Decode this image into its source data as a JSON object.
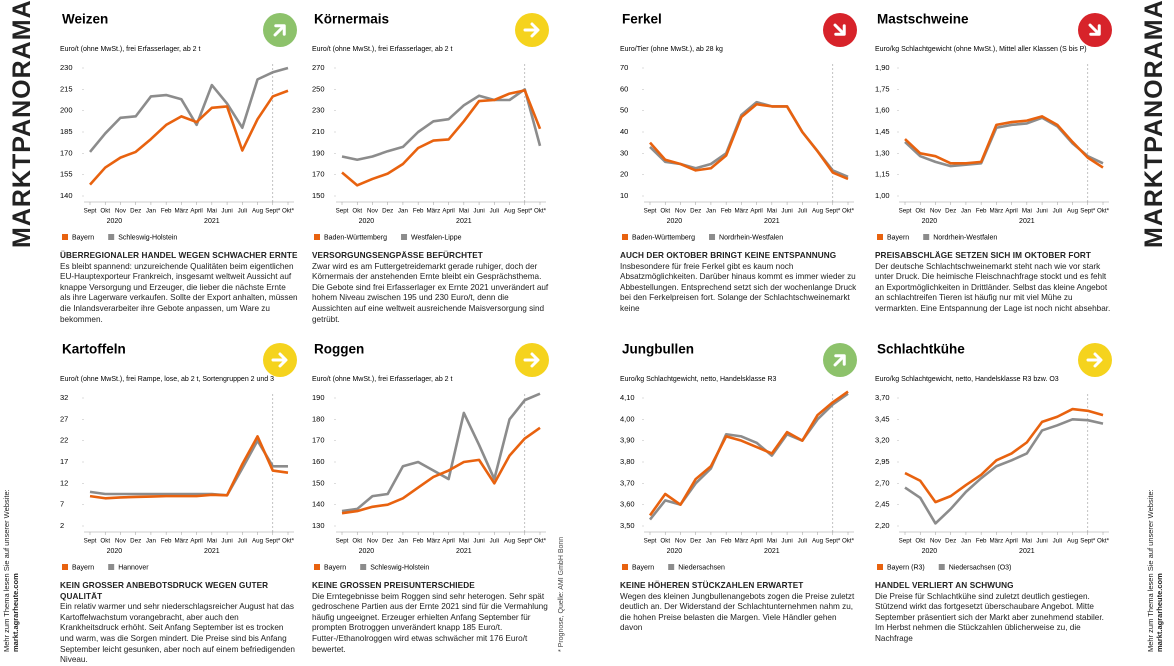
{
  "sidebar_title": "MARKTPANORAMA",
  "website_note": "Mehr zum Thema lesen Sie auf unserer Website:",
  "website": "markt.agrarheute.com",
  "footnote": "* Prognose, Quelle: AMI GmbH Bonn",
  "chart_data": [
    {
      "type": "line",
      "title": "Weizen",
      "trend": "up",
      "icon_color": "#8dc26b",
      "unit": "Euro/t (ohne MwSt.), frei Erfasserlager, ab 2 t",
      "categories": [
        "Sept",
        "Okt",
        "Nov",
        "Dez",
        "Jan",
        "Feb",
        "März",
        "April",
        "Mai",
        "Juni",
        "Juli",
        "Aug",
        "Sept*",
        "Okt*"
      ],
      "years": [
        "2020",
        "2021"
      ],
      "ylim": [
        140,
        230
      ],
      "yticks": [
        140,
        155,
        170,
        185,
        200,
        215,
        230
      ],
      "series": [
        {
          "name": "Bayern",
          "color": "#e8620f",
          "values": [
            148,
            160,
            167,
            171,
            180,
            190,
            196,
            192,
            202,
            203,
            172,
            194,
            210,
            214
          ]
        },
        {
          "name": "Schleswig-Holstein",
          "color": "#8c8c8c",
          "values": [
            171,
            184,
            195,
            196,
            210,
            211,
            208,
            190,
            218,
            205,
            188,
            222,
            227,
            230
          ]
        }
      ],
      "headline": "ÜBERREGIONALER HANDEL WEGEN SCHWACHER ERNTE",
      "body": "Es bleibt spannend: unzureichende Qualitäten beim eigentlichen EU-Hauptexporteur Frankreich, insgesamt weltweit Aussicht auf knappe Versorgung und Erzeuger, die lieber die nächste Ernte als ihre Lagerware verkaufen. Sollte der Export anhalten, müssen die Inlandsverarbeiter ihre Gebote anpassen, um Ware zu bekommen."
    },
    {
      "type": "line",
      "title": "Körnermais",
      "trend": "right",
      "icon_color": "#f5d31d",
      "unit": "Euro/t (ohne MwSt.), frei Erfasserlager, ab 2 t",
      "categories": [
        "Sept",
        "Okt",
        "Nov",
        "Dez",
        "Jan",
        "Feb",
        "März",
        "April",
        "Mai",
        "Juni",
        "Juli",
        "Aug",
        "Sept*",
        "Okt*"
      ],
      "years": [
        "2020",
        "2021"
      ],
      "ylim": [
        150,
        270
      ],
      "yticks": [
        150,
        170,
        190,
        210,
        230,
        250,
        270
      ],
      "series": [
        {
          "name": "Baden-Württemberg",
          "color": "#e8620f",
          "values": [
            172,
            160,
            166,
            171,
            180,
            195,
            202,
            203,
            220,
            239,
            240,
            246,
            249,
            213
          ]
        },
        {
          "name": "Westfalen-Lippe",
          "color": "#8c8c8c",
          "values": [
            187,
            184,
            187,
            192,
            196,
            210,
            220,
            222,
            235,
            244,
            240,
            240,
            250,
            197
          ]
        }
      ],
      "headline": "VERSORGUNGSENGPÄSSE BEFÜRCHTET",
      "body": "Zwar wird es am Futtergetreidemarkt gerade ruhiger, doch der Körnermais der anstehenden Ernte bleibt ein Gesprächsthema. Die Gebote sind frei Erfasserlager ex Ernte 2021 unverändert auf hohem Niveau zwischen 195 und 230 Euro/t, denn die Aussichten auf eine weltweit ausreichende Maisversorgung sind getrübt."
    },
    {
      "type": "line",
      "title": "Ferkel",
      "trend": "down",
      "icon_color": "#d7232a",
      "unit": "Euro/Tier (ohne MwSt.), ab 28 kg",
      "categories": [
        "Sept",
        "Okt",
        "Nov",
        "Dez",
        "Jan",
        "Feb",
        "März",
        "April",
        "Mai",
        "Juni",
        "Juli",
        "Aug",
        "Sept*",
        "Okt*"
      ],
      "years": [
        "2020",
        "2021"
      ],
      "ylim": [
        10,
        70
      ],
      "yticks": [
        10,
        20,
        30,
        40,
        50,
        60,
        70
      ],
      "series": [
        {
          "name": "Baden-Württemberg",
          "color": "#e8620f",
          "values": [
            35,
            27,
            25,
            22,
            23,
            29,
            47,
            53,
            52,
            52,
            40,
            31,
            21,
            18
          ]
        },
        {
          "name": "Nordrhein-Westfalen",
          "color": "#8c8c8c",
          "values": [
            33,
            26,
            25,
            23,
            25,
            30,
            48,
            54,
            52,
            52,
            40,
            31,
            22,
            19
          ]
        }
      ],
      "headline": "AUCH DER OKTOBER BRINGT KEINE ENTSPANNUNG",
      "body": "Insbesondere für freie Ferkel gibt es kaum noch Absatzmöglichkeiten. Darüber hinaus kommt es immer wieder zu Abbestellungen. Entsprechend setzt sich der wochenlange Druck bei den Ferkelpreisen fort. Solange der Schlachtschweinemarkt keine"
    },
    {
      "type": "line",
      "title": "Mastschweine",
      "trend": "down",
      "icon_color": "#d7232a",
      "unit": "Euro/kg Schlachtgewicht (ohne MwSt.), Mittel aller Klassen (S bis P)",
      "categories": [
        "Sept",
        "Okt",
        "Nov",
        "Dez",
        "Jan",
        "Feb",
        "März",
        "April",
        "Mai",
        "Juni",
        "Juli",
        "Aug",
        "Sept*",
        "Okt*"
      ],
      "years": [
        "2020",
        "2021"
      ],
      "ylim": [
        1.0,
        1.9
      ],
      "yticks": [
        {
          "value": 1.0,
          "label": "1,00"
        },
        {
          "value": 1.15,
          "label": "1,15"
        },
        {
          "value": 1.3,
          "label": "1,30"
        },
        {
          "value": 1.45,
          "label": "1,45"
        },
        {
          "value": 1.6,
          "label": "1,60"
        },
        {
          "value": 1.75,
          "label": "1,75"
        },
        {
          "value": 1.9,
          "label": "1,90"
        }
      ],
      "series": [
        {
          "name": "Bayern",
          "color": "#e8620f",
          "values": [
            1.4,
            1.3,
            1.28,
            1.23,
            1.23,
            1.24,
            1.5,
            1.52,
            1.53,
            1.56,
            1.5,
            1.38,
            1.27,
            1.2
          ]
        },
        {
          "name": "Nordrhein-Westfalen",
          "color": "#8c8c8c",
          "values": [
            1.38,
            1.28,
            1.24,
            1.21,
            1.22,
            1.23,
            1.48,
            1.5,
            1.51,
            1.55,
            1.49,
            1.37,
            1.28,
            1.23
          ]
        }
      ],
      "headline": "PREISABSCHLÄGE SETZEN SICH IM OKTOBER FORT",
      "body": "Der deutsche Schlachtschweinemarkt steht nach wie vor stark unter Druck. Die heimische Fleischnachfrage stockt und es fehlt an Exportmöglichkeiten in Drittländer. Selbst das kleine Angebot an schlachtreifen Tieren ist häufig nur mit viel Mühe zu vermarkten. Eine Entspannung der Lage ist noch nicht absehbar."
    },
    {
      "type": "line",
      "title": "Kartoffeln",
      "trend": "right",
      "icon_color": "#f5d31d",
      "unit": "Euro/t (ohne MwSt.), frei Rampe, lose, ab 2 t, Sortengruppen 2 und 3",
      "categories": [
        "Sept",
        "Okt",
        "Nov",
        "Dez",
        "Jan",
        "Feb",
        "März",
        "April",
        "Mai",
        "Juni",
        "Juli",
        "Aug",
        "Sept*",
        "Okt*"
      ],
      "years": [
        "2020",
        "2021"
      ],
      "ylim": [
        2,
        32
      ],
      "yticks": [
        2,
        7,
        12,
        17,
        22,
        27,
        32
      ],
      "series": [
        {
          "name": "Bayern",
          "color": "#e8620f",
          "values": [
            9,
            8.5,
            8.7,
            8.8,
            8.9,
            9,
            9,
            9,
            9.3,
            9.2,
            16.5,
            23,
            15,
            14.5
          ]
        },
        {
          "name": "Hannover",
          "color": "#8c8c8c",
          "values": [
            10,
            9.5,
            9.5,
            9.5,
            9.5,
            9.5,
            9.5,
            9.5,
            9.5,
            9.2,
            15.5,
            22,
            16,
            16
          ]
        }
      ],
      "headline": "KEIN GROSSER ANBEBOTSDRUCK WEGEN GUTER QUALITÄT",
      "body": "Ein relativ warmer und sehr niederschlagsreicher August hat das Kartoffelwachstum vorangebracht, aber auch den Krankheitsdruck erhöht. Seit Anfang September ist es trocken und warm, was die Sorgen mindert. Die Preise sind bis Anfang September leicht gesunken, aber noch auf einem befriedigenden Niveau."
    },
    {
      "type": "line",
      "title": "Roggen",
      "trend": "right",
      "icon_color": "#f5d31d",
      "unit": "Euro/t (ohne MwSt.), frei Erfasserlager, ab 2 t",
      "categories": [
        "Sept",
        "Okt",
        "Nov",
        "Dez",
        "Jan",
        "Feb",
        "März",
        "April",
        "Mai",
        "Juni",
        "Juli",
        "Aug",
        "Sept*",
        "Okt*"
      ],
      "years": [
        "2020",
        "2021"
      ],
      "ylim": [
        130,
        190
      ],
      "yticks": [
        130,
        140,
        150,
        160,
        170,
        180,
        190
      ],
      "series": [
        {
          "name": "Bayern",
          "color": "#e8620f",
          "values": [
            136,
            137,
            139,
            140,
            143,
            148,
            153,
            156,
            160,
            161,
            150,
            163,
            171,
            176
          ]
        },
        {
          "name": "Schleswig-Holstein",
          "color": "#8c8c8c",
          "values": [
            137,
            138,
            144,
            145,
            158,
            160,
            156,
            152,
            183,
            168,
            152,
            180,
            189,
            192
          ]
        }
      ],
      "headline": "KEINE GROSSEN PREISUNTERSCHIEDE",
      "body": "Die Erntegebnisse beim Roggen sind sehr heterogen. Sehr spät gedroschene Partien aus der Ernte 2021 sind für die Vermahlung häufig ungeeignet. Erzeuger erhielten Anfang September für prompten Brotroggen unverändert knapp 185 Euro/t. Futter-/Ethanolroggen wird etwas schwächer mit 176 Euro/t bewertet."
    },
    {
      "type": "line",
      "title": "Jungbullen",
      "trend": "up",
      "icon_color": "#8dc26b",
      "unit": "Euro/kg Schlachtgewicht, netto, Handelsklasse R3",
      "categories": [
        "Sept",
        "Okt",
        "Nov",
        "Dez",
        "Jan",
        "Feb",
        "März",
        "April",
        "Mai",
        "Juni",
        "Juli",
        "Aug",
        "Sept*",
        "Okt*"
      ],
      "years": [
        "2020",
        "2021"
      ],
      "ylim": [
        3.5,
        4.1
      ],
      "yticks": [
        {
          "value": 3.5,
          "label": "3,50"
        },
        {
          "value": 3.6,
          "label": "3,60"
        },
        {
          "value": 3.7,
          "label": "3,70"
        },
        {
          "value": 3.8,
          "label": "3,80"
        },
        {
          "value": 3.9,
          "label": "3,90"
        },
        {
          "value": 4.0,
          "label": "4,00"
        },
        {
          "value": 4.1,
          "label": "4,10"
        }
      ],
      "series": [
        {
          "name": "Bayern",
          "color": "#e8620f",
          "values": [
            3.55,
            3.65,
            3.6,
            3.72,
            3.78,
            3.92,
            3.9,
            3.87,
            3.84,
            3.94,
            3.9,
            4.02,
            4.08,
            4.13
          ]
        },
        {
          "name": "Niedersachsen",
          "color": "#8c8c8c",
          "values": [
            3.53,
            3.62,
            3.6,
            3.7,
            3.77,
            3.93,
            3.92,
            3.89,
            3.83,
            3.93,
            3.9,
            4.0,
            4.07,
            4.12
          ]
        }
      ],
      "headline": "KEINE HÖHEREN STÜCKZAHLEN ERWARTET",
      "body": "Wegen des kleinen Jungbullenangebots zogen die Preise zuletzt deutlich an. Der Widerstand der Schlachtunternehmen nahm zu, die hohen Preise belasten die Margen. Viele Händler gehen davon"
    },
    {
      "type": "line",
      "title": "Schlachtkühe",
      "trend": "right",
      "icon_color": "#f5d31d",
      "unit": "Euro/kg Schlachtgewicht, netto, Handelsklasse R3 bzw. O3",
      "categories": [
        "Sept",
        "Okt",
        "Nov",
        "Dez",
        "Jan",
        "Feb",
        "März",
        "April",
        "Mai",
        "Juni",
        "Juli",
        "Aug",
        "Sept*",
        "Okt*"
      ],
      "years": [
        "2020",
        "2021"
      ],
      "ylim": [
        2.2,
        3.7
      ],
      "yticks": [
        {
          "value": 2.2,
          "label": "2,20"
        },
        {
          "value": 2.45,
          "label": "2,45"
        },
        {
          "value": 2.7,
          "label": "2,70"
        },
        {
          "value": 2.95,
          "label": "2,95"
        },
        {
          "value": 3.2,
          "label": "3,20"
        },
        {
          "value": 3.45,
          "label": "3,45"
        },
        {
          "value": 3.7,
          "label": "3,70"
        }
      ],
      "series": [
        {
          "name": "Bayern (R3)",
          "color": "#e8620f",
          "values": [
            2.82,
            2.73,
            2.48,
            2.55,
            2.68,
            2.8,
            2.97,
            3.05,
            3.18,
            3.42,
            3.48,
            3.57,
            3.55,
            3.5
          ]
        },
        {
          "name": "Niedersachsen (O3)",
          "color": "#8c8c8c",
          "values": [
            2.65,
            2.53,
            2.23,
            2.4,
            2.6,
            2.76,
            2.9,
            2.97,
            3.05,
            3.32,
            3.38,
            3.45,
            3.44,
            3.4
          ]
        }
      ],
      "headline": "HANDEL VERLIERT AN SCHWUNG",
      "body": "Die Preise für Schlachtkühe sind zuletzt deutlich gestiegen. Stützend wirkt das fortgesetzt überschaubare Angebot. Mitte September präsentiert sich der Markt aber zunehmend stabiler. Im Herbst nehmen die Stückzahlen üblicherweise zu, die Nachfrage"
    }
  ]
}
